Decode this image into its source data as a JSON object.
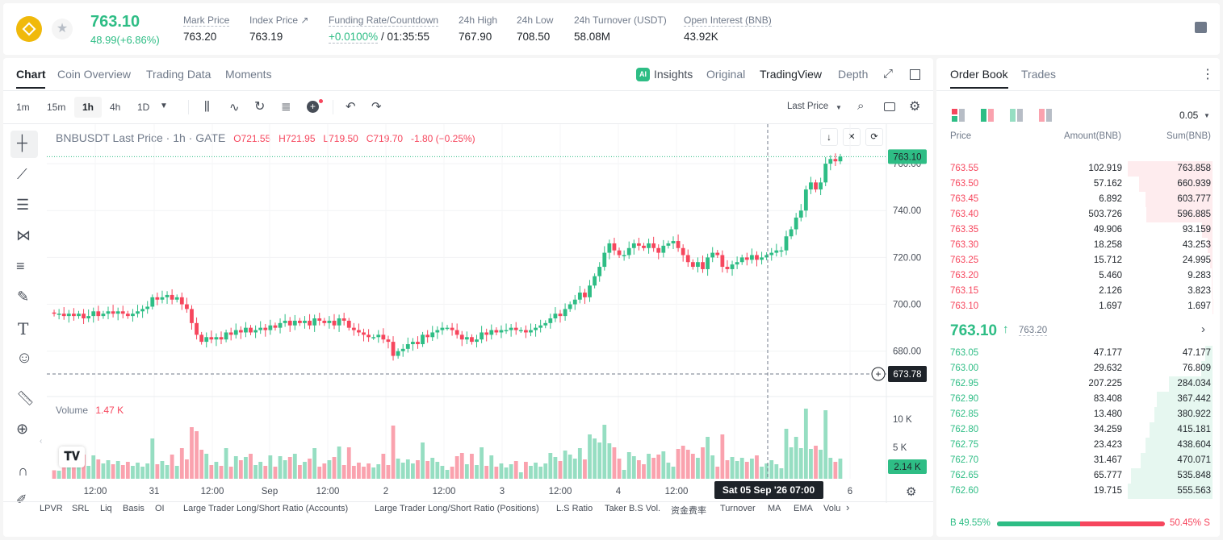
{
  "header": {
    "price": "763.10",
    "change": "48.99(+6.86%)",
    "stats": [
      {
        "label": "Mark Price",
        "value": "763.20"
      },
      {
        "label": "Index Price ↗",
        "value": "763.19"
      },
      {
        "label": "Funding Rate/Countdown",
        "value_green": "+0.0100%",
        "value": "/ 01:35:55"
      },
      {
        "label": "24h High",
        "value": "767.90"
      },
      {
        "label": "24h Low",
        "value": "708.50"
      },
      {
        "label": "24h Turnover (USDT)",
        "value": "58.08M"
      },
      {
        "label": "Open Interest (BNB)",
        "value": "43.92K"
      }
    ]
  },
  "chart_tabs": [
    "Chart",
    "Coin Overview",
    "Trading Data",
    "Moments"
  ],
  "view_tabs": {
    "insights": "Insights",
    "original": "Original",
    "tradingview": "TradingView",
    "depth": "Depth"
  },
  "intervals": [
    "1m",
    "15m",
    "1h",
    "4h",
    "1D"
  ],
  "active_interval": "1h",
  "price_type": "Last Price",
  "legend": {
    "symbol": "BNBUSDT Last Price · 1h · GATE",
    "o": "O721.55",
    "h": "H721.95",
    "l": "L719.50",
    "c": "C719.70",
    "chg": "-1.80 (−0.25%)"
  },
  "volume": {
    "label": "Volume",
    "value": "1.47 K",
    "current": "2.14 K"
  },
  "axis": {
    "last_price": "763.10",
    "cursor_price": "673.78",
    "crosshair_date": "Sat 05 Sep '26",
    "crosshair_time": "07:00"
  },
  "bottom_indicators": [
    "LPVR",
    "SRL",
    "Liq",
    "Basis",
    "OI",
    "Large Trader Long/Short Ratio (Accounts)",
    "Large Trader Long/Short Ratio (Positions)",
    "L.S Ratio",
    "Taker B.S Vol.",
    "资金费率",
    "Turnover",
    "MA",
    "EMA",
    "Volu"
  ],
  "order_book": {
    "tabs": [
      "Order Book",
      "Trades"
    ],
    "precision": "0.05",
    "headers": [
      "Price",
      "Amount(BNB)",
      "Sum(BNB)"
    ],
    "asks": [
      [
        "763.55",
        "102.919",
        "763.858"
      ],
      [
        "763.50",
        "57.162",
        "660.939"
      ],
      [
        "763.45",
        "6.892",
        "603.777"
      ],
      [
        "763.40",
        "503.726",
        "596.885"
      ],
      [
        "763.35",
        "49.906",
        "93.159"
      ],
      [
        "763.30",
        "18.258",
        "43.253"
      ],
      [
        "763.25",
        "15.712",
        "24.995"
      ],
      [
        "763.20",
        "5.460",
        "9.283"
      ],
      [
        "763.15",
        "2.126",
        "3.823"
      ],
      [
        "763.10",
        "1.697",
        "1.697"
      ]
    ],
    "ask_depth": [
      1.0,
      0.865,
      0.79,
      0.78,
      0.122,
      0.057,
      0.033,
      0.012,
      0.005,
      0.002
    ],
    "mid_price": "763.10",
    "mid_mark": "763.20",
    "bids": [
      [
        "763.05",
        "47.177",
        "47.177"
      ],
      [
        "763.00",
        "29.632",
        "76.809"
      ],
      [
        "762.95",
        "207.225",
        "284.034"
      ],
      [
        "762.90",
        "83.408",
        "367.442"
      ],
      [
        "762.85",
        "13.480",
        "380.922"
      ],
      [
        "762.80",
        "34.259",
        "415.181"
      ],
      [
        "762.75",
        "23.423",
        "438.604"
      ],
      [
        "762.70",
        "31.467",
        "470.071"
      ],
      [
        "762.65",
        "65.777",
        "535.848"
      ],
      [
        "762.60",
        "19.715",
        "555.563"
      ]
    ],
    "bid_depth": [
      0.085,
      0.138,
      0.51,
      0.66,
      0.685,
      0.747,
      0.789,
      0.846,
      0.964,
      1.0
    ],
    "buy_pct": "49.55%",
    "sell_pct": "50.45%",
    "buy_ratio": 0.4955
  },
  "chart_data": {
    "type": "candlestick",
    "x_tick_labels": [
      "12:00",
      "31",
      "12:00",
      "Sep",
      "12:00",
      "2",
      "12:00",
      "3",
      "12:00",
      "4",
      "12:00",
      "5",
      "6"
    ],
    "y_tick_labels": [
      "680.00",
      "700.00",
      "720.00",
      "740.00",
      "760.00"
    ],
    "ylim": [
      672,
      770
    ],
    "volume_tick_labels": [
      "10 K",
      "5 K"
    ],
    "colors": {
      "up": "#2ebd85",
      "down": "#f6465d"
    },
    "closes": [
      696,
      696,
      695,
      696,
      695,
      696,
      694,
      695,
      697,
      695,
      696,
      697,
      696,
      697,
      696,
      695,
      696,
      697,
      698,
      699,
      703,
      702,
      703,
      704,
      702,
      703,
      700,
      698,
      692,
      687,
      684,
      686,
      685,
      686,
      685,
      688,
      687,
      689,
      688,
      690,
      688,
      689,
      690,
      689,
      691,
      690,
      692,
      693,
      691,
      693,
      692,
      693,
      691,
      694,
      693,
      692,
      693,
      691,
      694,
      693,
      690,
      689,
      688,
      687,
      686,
      686,
      687,
      685,
      684,
      678,
      680,
      681,
      683,
      684,
      683,
      687,
      686,
      688,
      689,
      690,
      690,
      689,
      687,
      685,
      686,
      684,
      685,
      688,
      687,
      689,
      688,
      689,
      689,
      690,
      689,
      689,
      688,
      689,
      690,
      691,
      692,
      694,
      696,
      695,
      698,
      700,
      702,
      705,
      703,
      708,
      712,
      716,
      722,
      726,
      723,
      721,
      721,
      724,
      726,
      725,
      724,
      726,
      724,
      722,
      725,
      726,
      727,
      724,
      721,
      718,
      716,
      718,
      715,
      720,
      722,
      721,
      716,
      715,
      717,
      718,
      720,
      719,
      721,
      719,
      720,
      721,
      722,
      723,
      723,
      729,
      732,
      737,
      740,
      749,
      752,
      749,
      752,
      760,
      762,
      761,
      763
    ]
  }
}
